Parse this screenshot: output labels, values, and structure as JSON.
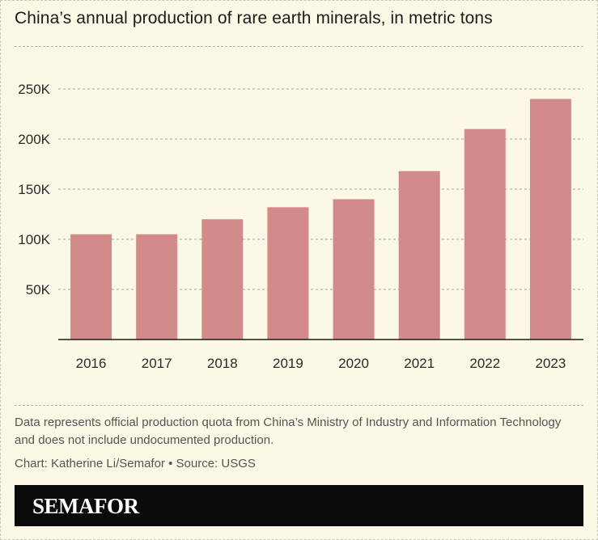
{
  "header": {
    "title": "China’s annual production of rare earth minerals, in metric tons"
  },
  "chart_data": {
    "type": "bar",
    "title": "China’s annual production of rare earth minerals, in metric tons",
    "xlabel": "",
    "ylabel": "",
    "categories": [
      "2016",
      "2017",
      "2018",
      "2019",
      "2020",
      "2021",
      "2022",
      "2023"
    ],
    "values": [
      105000,
      105000,
      120000,
      132000,
      140000,
      168000,
      210000,
      240000
    ],
    "ylim": [
      0,
      250000
    ],
    "yticks": [
      50000,
      100000,
      150000,
      200000,
      250000
    ],
    "ytick_labels": [
      "50K",
      "100K",
      "150K",
      "200K",
      "250K"
    ],
    "bar_color": "#d38a8b",
    "grid": true
  },
  "footer": {
    "note": "Data represents official production quota from China’s Ministry of Industry and Information Technology and does not include undocumented production.",
    "credit": "Chart: Katherine Li/Semafor • Source: USGS",
    "brand": "SEMAFOR"
  }
}
